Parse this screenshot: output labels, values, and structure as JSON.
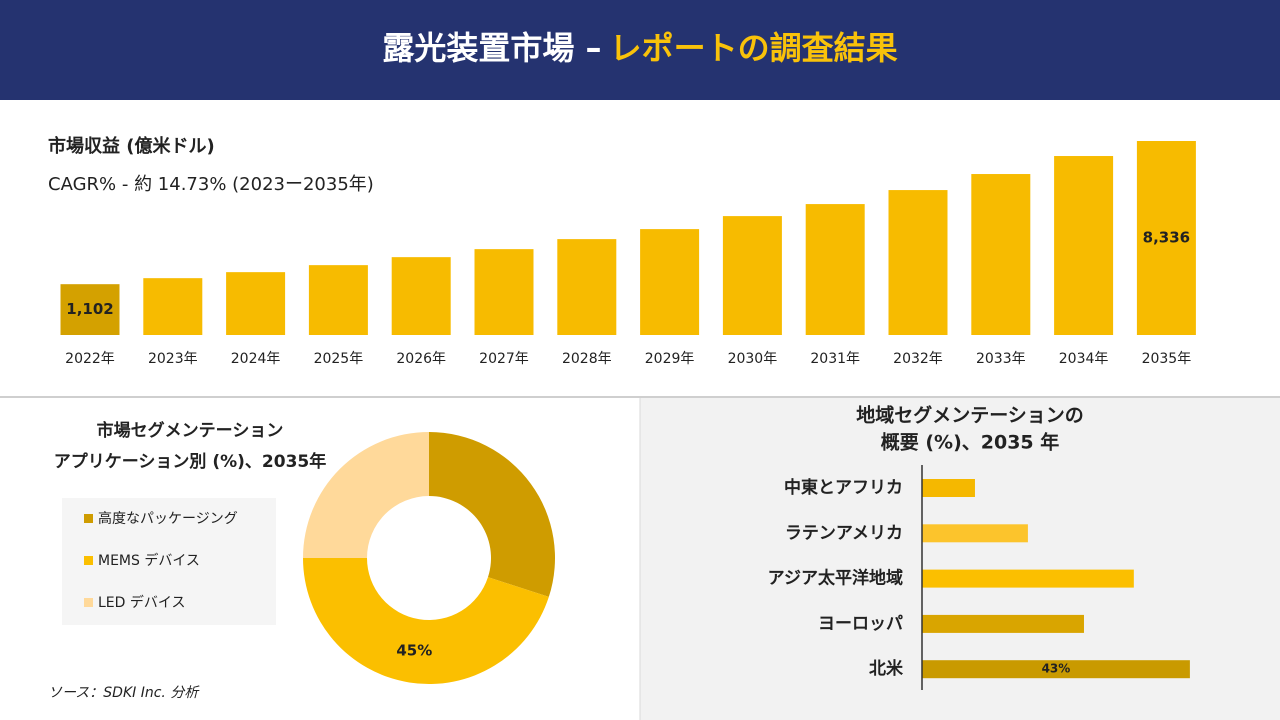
{
  "header": {
    "title_part1": "露光装置市場 –",
    "title_part2": "レポートの調査結果"
  },
  "chart_data": [
    {
      "type": "bar",
      "title": "市場収益 (億米ドル)",
      "subtitle": "CAGR% - 約 14.73% (2023ー2035年)",
      "categories": [
        "2022年",
        "2023年",
        "2024年",
        "2025年",
        "2026年",
        "2027年",
        "2028年",
        "2029年",
        "2030年",
        "2031年",
        "2032年",
        "2033年",
        "2034年",
        "2035年"
      ],
      "values": [
        1102,
        1406,
        1710,
        2064,
        2468,
        2873,
        3379,
        3885,
        4542,
        5149,
        5857,
        6667,
        7577,
        8336
      ],
      "value_labels": [
        "1,102",
        null,
        null,
        null,
        null,
        null,
        null,
        null,
        null,
        null,
        null,
        null,
        null,
        "8,336"
      ],
      "color": "#f7bb00"
    },
    {
      "type": "donut",
      "title_lines": [
        "市場セグメンテーション",
        "アプリケーション別 (%)、2035年"
      ],
      "series": [
        {
          "name": "高度なパッケージング",
          "color": "#cf9c00",
          "value": 30
        },
        {
          "name": "MEMS デバイス",
          "color": "#fbbf00",
          "value": 45,
          "value_label": "45%"
        },
        {
          "name": "LED デバイス",
          "color": "#ffd99a",
          "value": 25
        }
      ]
    },
    {
      "type": "barh",
      "title_lines": [
        "地域セグメンテーションの",
        "概要 (%)、2035 年"
      ],
      "categories": [
        "中東とアフリカ",
        "ラテンアメリカ",
        "アジア太平洋地域",
        "ヨーロッパ",
        "北米"
      ],
      "values": [
        8.5,
        17,
        34,
        26,
        43
      ],
      "value_labels": [
        null,
        null,
        null,
        null,
        "43%"
      ],
      "colors": [
        "#f5b800",
        "#fcc42c",
        "#fbbf00",
        "#d9a500",
        "#c99a00"
      ]
    }
  ],
  "footer": {
    "source": "ソース：SDKI Inc. 分析"
  }
}
